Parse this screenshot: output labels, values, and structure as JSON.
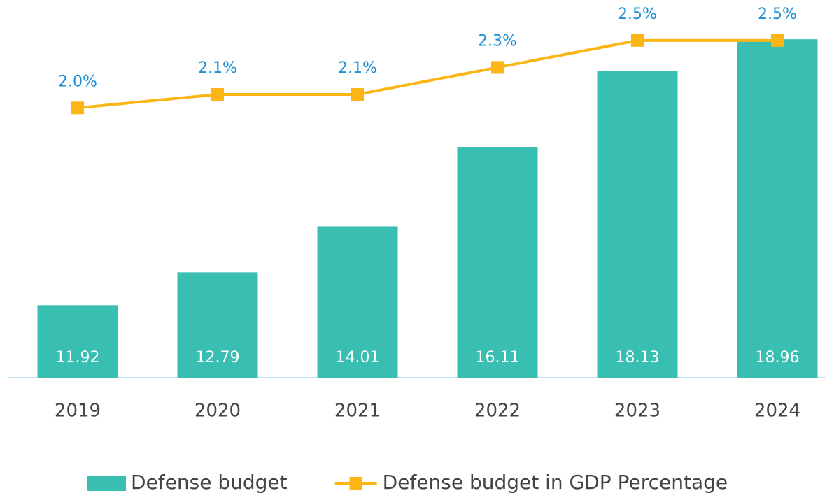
{
  "chart_data": {
    "type": "bar-line",
    "categories": [
      "2019",
      "2020",
      "2021",
      "2022",
      "2023",
      "2024"
    ],
    "series": [
      {
        "name": "Defense budget",
        "type": "bar",
        "color": "#38bfb1",
        "values": [
          11.92,
          12.79,
          14.01,
          16.11,
          18.13,
          18.96
        ]
      },
      {
        "name": "Defense budget in GDP Percentage",
        "type": "line",
        "axis": "y2",
        "color": "#fbb616",
        "values": [
          2.0,
          2.1,
          2.1,
          2.3,
          2.5,
          2.5
        ],
        "value_labels": [
          "2.0%",
          "2.1%",
          "2.1%",
          "2.3%",
          "2.5%",
          "2.5%"
        ]
      }
    ],
    "ylim": [
      10,
      20
    ],
    "y2lim": [
      0,
      2.8
    ],
    "legend": "bottom"
  }
}
